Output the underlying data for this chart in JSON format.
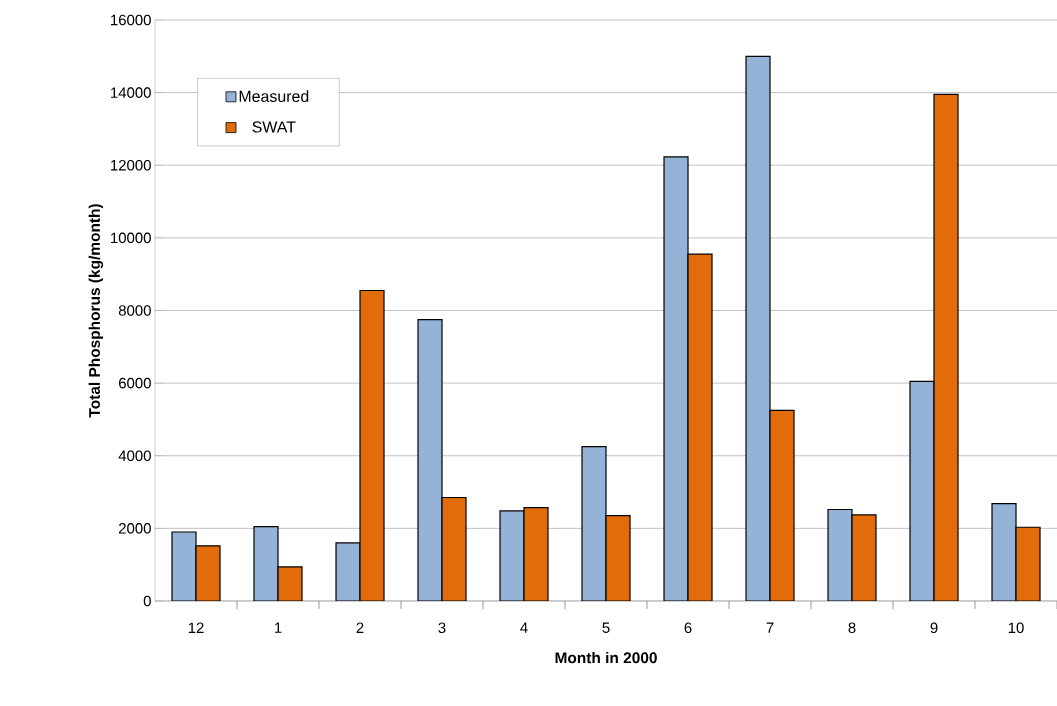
{
  "chart_data": {
    "type": "bar",
    "xlabel": "Month in 2000",
    "ylabel": "Total Phosphorus (kg/month)",
    "categories": [
      "12",
      "1",
      "2",
      "3",
      "4",
      "5",
      "6",
      "7",
      "8",
      "9",
      "10"
    ],
    "series": [
      {
        "name": "Measured",
        "color": "#95b3d7",
        "values": [
          1900,
          2050,
          1600,
          7750,
          2480,
          4250,
          12230,
          15000,
          2520,
          6050,
          2680
        ]
      },
      {
        "name": "SWAT",
        "color": "#e36c0a",
        "values": [
          1520,
          940,
          8550,
          2850,
          2570,
          2350,
          9550,
          5250,
          2370,
          13950,
          2030
        ]
      }
    ],
    "ylim": [
      0,
      16000
    ],
    "yticks": [
      0,
      2000,
      4000,
      6000,
      8000,
      10000,
      12000,
      14000,
      16000
    ],
    "grid": "y",
    "legend": "top left"
  }
}
